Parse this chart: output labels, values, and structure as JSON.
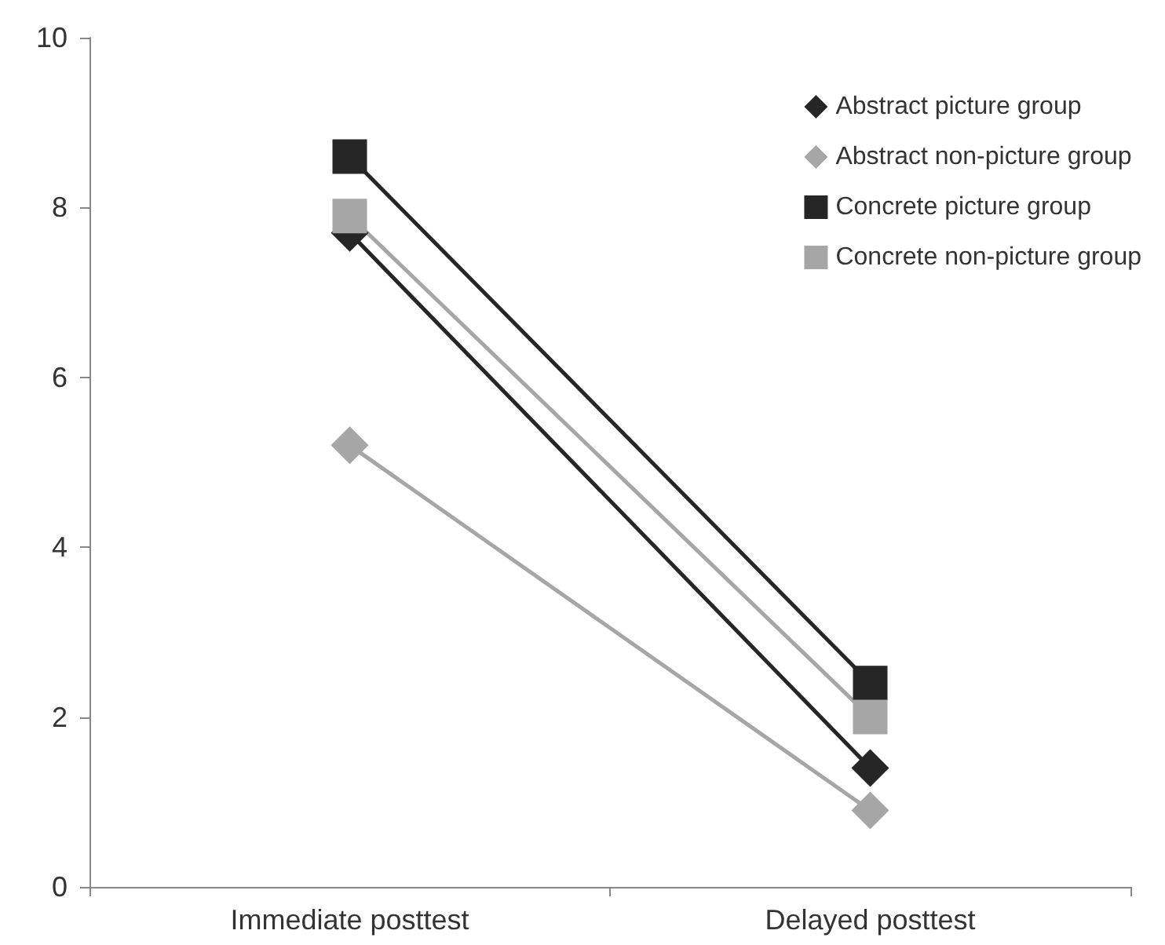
{
  "chart_data": {
    "type": "line",
    "categories": [
      "Immediate posttest",
      "Delayed posttest"
    ],
    "series": [
      {
        "name": "Abstract picture group",
        "color": "#262626",
        "marker": "diamond",
        "values": [
          7.7,
          1.4
        ]
      },
      {
        "name": "Abstract non-picture group",
        "color": "#a6a6a6",
        "marker": "diamond",
        "values": [
          5.2,
          0.9
        ]
      },
      {
        "name": "Concrete picture group",
        "color": "#262626",
        "marker": "square",
        "values": [
          8.6,
          2.4
        ]
      },
      {
        "name": "Concrete non-picture group",
        "color": "#a6a6a6",
        "marker": "square",
        "values": [
          7.9,
          2.0
        ]
      }
    ],
    "ylim": [
      0,
      10
    ],
    "yticks": [
      0,
      2,
      4,
      6,
      8,
      10
    ],
    "grid": false,
    "legend": "top right",
    "line_style": "solid"
  }
}
